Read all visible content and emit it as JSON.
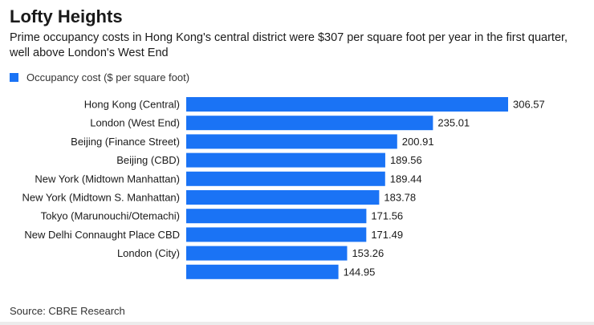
{
  "title": "Lofty Heights",
  "subtitle": "Prime occupancy costs in Hong Kong's central district were $307 per square foot per year in the first quarter, well above London's West End",
  "source": "Source: CBRE Research",
  "colors": {
    "bar": "#1a73f5"
  },
  "chart_data": {
    "type": "bar",
    "orientation": "horizontal",
    "categories": [
      "Hong Kong (Central)",
      "London (West End)",
      "Beijing (Finance Street)",
      "Beijing (CBD)",
      "New York (Midtown Manhattan)",
      "New York (Midtown S. Manhattan)",
      "Tokyo (Marunouchi/Otemachi)",
      "New Delhi Connaught Place CBD",
      "London (City)",
      ""
    ],
    "series": [
      {
        "name": "Occupancy cost ($ per square foot)",
        "values": [
          306.57,
          235.01,
          200.91,
          189.56,
          189.44,
          183.78,
          171.56,
          171.49,
          153.26,
          144.95
        ]
      }
    ],
    "value_labels": [
      "306.57",
      "235.01",
      "200.91",
      "189.56",
      "189.44",
      "183.78",
      "171.56",
      "171.49",
      "153.26",
      "144.95"
    ],
    "xlim": [
      0,
      306.57
    ],
    "grid": false,
    "legend": "top-left"
  }
}
